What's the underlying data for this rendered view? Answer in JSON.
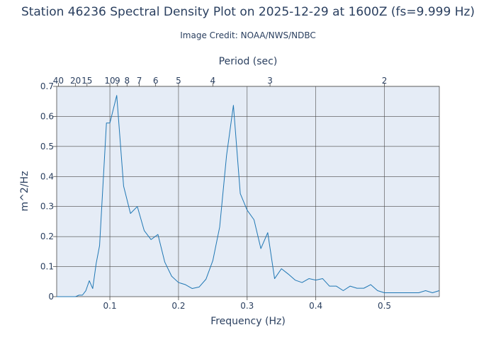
{
  "chart_data": {
    "type": "line",
    "title": "Station 46236 Spectral Density Plot  on 2025-12-29 at 1600Z (fs=9.999 Hz)",
    "subtitle": "Image Credit: NOAA/NWS/NDBC",
    "xlabel": "Frequency (Hz)",
    "ylabel": "m^2/Hz",
    "x2label": "Period (sec)",
    "xlim": [
      0.0225,
      0.58
    ],
    "ylim": [
      0,
      0.7
    ],
    "x_ticks": [
      0.1,
      0.2,
      0.3,
      0.4,
      0.5
    ],
    "x_tick_labels": [
      "0.1",
      "0.2",
      "0.3",
      "0.4",
      "0.5"
    ],
    "y_ticks": [
      0,
      0.1,
      0.2,
      0.3,
      0.4,
      0.5,
      0.6,
      0.7
    ],
    "y_tick_labels": [
      "0",
      "0.1",
      "0.2",
      "0.3",
      "0.4",
      "0.5",
      "0.6",
      "0.7"
    ],
    "period_ticks": [
      40,
      20,
      15,
      10,
      9,
      8,
      7,
      6,
      5,
      4,
      3,
      2
    ],
    "period_tick_labels": [
      "40",
      "20",
      "15",
      "10",
      "9",
      "8",
      "7",
      "6",
      "5",
      "4",
      "3",
      "2"
    ],
    "grid": true,
    "colors": {
      "line": "#1f77b4",
      "plot_bg": "#e5ecf6",
      "grid": "#4a4a4a",
      "text": "#2a3f5f"
    },
    "series": [
      {
        "x": [
          0.0225,
          0.03,
          0.035,
          0.04,
          0.045,
          0.05,
          0.055,
          0.06,
          0.065,
          0.07,
          0.075,
          0.08,
          0.085,
          0.095,
          0.1,
          0.11,
          0.12,
          0.13,
          0.14,
          0.15,
          0.16,
          0.17,
          0.18,
          0.19,
          0.2,
          0.21,
          0.22,
          0.23,
          0.24,
          0.25,
          0.26,
          0.27,
          0.28,
          0.29,
          0.3,
          0.31,
          0.32,
          0.33,
          0.34,
          0.35,
          0.36,
          0.37,
          0.38,
          0.39,
          0.4,
          0.41,
          0.42,
          0.43,
          0.44,
          0.45,
          0.46,
          0.47,
          0.48,
          0.49,
          0.5,
          0.51,
          0.52,
          0.53,
          0.54,
          0.55,
          0.56,
          0.57,
          0.58
        ],
        "values": [
          0,
          0,
          0,
          0,
          0,
          0,
          0.005,
          0.005,
          0.02,
          0.053,
          0.027,
          0.11,
          0.17,
          0.578,
          0.578,
          0.67,
          0.368,
          0.277,
          0.3,
          0.22,
          0.19,
          0.207,
          0.115,
          0.068,
          0.047,
          0.04,
          0.027,
          0.032,
          0.058,
          0.12,
          0.232,
          0.47,
          0.637,
          0.343,
          0.288,
          0.256,
          0.16,
          0.213,
          0.06,
          0.093,
          0.075,
          0.055,
          0.047,
          0.06,
          0.055,
          0.06,
          0.035,
          0.035,
          0.02,
          0.035,
          0.028,
          0.028,
          0.04,
          0.02,
          0.013,
          0.013,
          0.013,
          0.013,
          0.013,
          0.013,
          0.02,
          0.013,
          0.02
        ]
      }
    ]
  }
}
